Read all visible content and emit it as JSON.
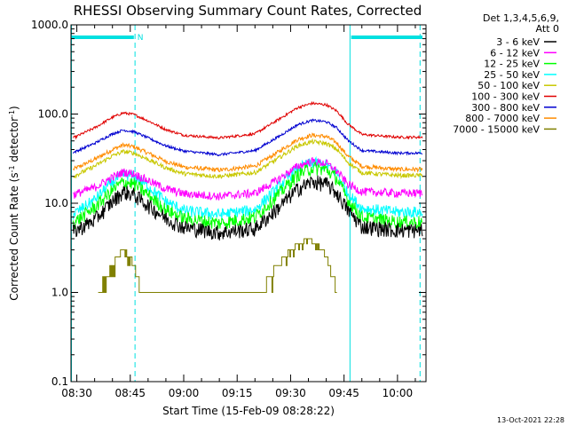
{
  "chart_data": {
    "type": "line",
    "title": "RHESSI Observing Summary Count Rates, Corrected",
    "xlabel": "Start Time (15-Feb-09 08:28:22)",
    "ylabel_parts": [
      "Corrected Count Rate (s",
      "-1",
      " detector",
      "-1",
      ")"
    ],
    "y_scale": "log",
    "ylim": [
      0.1,
      1000
    ],
    "xlim": [
      "08:28:22",
      "10:08:00"
    ],
    "x_ticks": [
      "08:30",
      "08:45",
      "09:00",
      "09:15",
      "09:30",
      "09:45",
      "10:00"
    ],
    "y_ticks": [
      "0.1",
      "1.0",
      "10.0",
      "100.0",
      "1000.0"
    ],
    "legend_header": [
      "Det 1,3,4,5,6,9,",
      "Att 0"
    ],
    "legend_position": "top-right, outside",
    "grid": false,
    "flag_marker": "N",
    "footer": "13-Oct-2021 22:28",
    "flag_bars": [
      {
        "start": "08:28:22",
        "end": "08:46:00"
      },
      {
        "start": "09:47:00",
        "end": "10:07:00"
      }
    ],
    "vertical_lines": [
      {
        "time": "08:28:30",
        "style": "solid"
      },
      {
        "time": "08:46:20",
        "style": "dashed"
      },
      {
        "time": "09:46:40",
        "style": "solid"
      },
      {
        "time": "10:06:20",
        "style": "dashed"
      }
    ],
    "series": [
      {
        "name": "3 - 6 keV",
        "color": "#000000",
        "x": [
          "08:29",
          "08:35",
          "08:40",
          "08:43",
          "08:46",
          "08:50",
          "08:55",
          "09:00",
          "09:10",
          "09:20",
          "09:26",
          "09:32",
          "09:36",
          "09:40",
          "09:43",
          "09:46",
          "09:50",
          "10:00",
          "10:07"
        ],
        "values": [
          4.8,
          6.5,
          10.5,
          13.5,
          12.5,
          9.5,
          6.8,
          5.4,
          4.7,
          5.2,
          8.5,
          14.5,
          17.5,
          16.5,
          13.0,
          8.5,
          5.5,
          5.0,
          5.0
        ]
      },
      {
        "name": "6 - 12 keV",
        "color": "#ff00ff",
        "x": [
          "08:29",
          "08:35",
          "08:40",
          "08:43",
          "08:46",
          "08:50",
          "08:55",
          "09:00",
          "09:10",
          "09:20",
          "09:26",
          "09:32",
          "09:36",
          "09:40",
          "09:43",
          "09:46",
          "09:50",
          "10:00",
          "10:07"
        ],
        "values": [
          12.5,
          15.0,
          19.5,
          22.5,
          21.5,
          18.0,
          14.5,
          12.8,
          12.0,
          13.0,
          18.0,
          26.0,
          29.5,
          28.0,
          23.0,
          16.5,
          13.5,
          13.0,
          13.0
        ]
      },
      {
        "name": "12 - 25 keV",
        "color": "#00ff00",
        "x": [
          "08:29",
          "08:35",
          "08:40",
          "08:43",
          "08:46",
          "08:50",
          "08:55",
          "09:00",
          "09:10",
          "09:20",
          "09:26",
          "09:32",
          "09:36",
          "09:40",
          "09:43",
          "09:46",
          "09:50",
          "10:00",
          "10:07"
        ],
        "values": [
          6.0,
          9.0,
          14.0,
          17.5,
          16.5,
          12.5,
          8.5,
          6.8,
          6.0,
          7.0,
          12.0,
          21.0,
          25.0,
          24.0,
          19.0,
          11.0,
          7.0,
          6.2,
          6.2
        ]
      },
      {
        "name": "25 - 50 keV",
        "color": "#00ffff",
        "x": [
          "08:29",
          "08:35",
          "08:40",
          "08:43",
          "08:46",
          "08:50",
          "08:55",
          "09:00",
          "09:10",
          "09:20",
          "09:26",
          "09:32",
          "09:36",
          "09:40",
          "09:43",
          "09:46",
          "09:50",
          "10:00",
          "10:07"
        ],
        "values": [
          7.5,
          11.0,
          17.5,
          21.0,
          20.0,
          15.5,
          10.5,
          8.3,
          7.5,
          8.5,
          14.5,
          24.5,
          28.5,
          27.0,
          21.5,
          13.0,
          8.8,
          8.0,
          8.0
        ]
      },
      {
        "name": "50 - 100 keV",
        "color": "#c8c800",
        "x": [
          "08:29",
          "08:35",
          "08:40",
          "08:43",
          "08:46",
          "08:50",
          "08:55",
          "09:00",
          "09:10",
          "09:20",
          "09:26",
          "09:32",
          "09:36",
          "09:40",
          "09:43",
          "09:46",
          "09:50",
          "10:00",
          "10:07"
        ],
        "values": [
          20.0,
          26.0,
          34.0,
          38.0,
          36.5,
          31.0,
          25.0,
          21.5,
          20.0,
          22.0,
          31.0,
          44.0,
          49.0,
          47.0,
          40.0,
          29.0,
          22.0,
          20.5,
          20.5
        ]
      },
      {
        "name": "100 - 300 keV",
        "color": "#e00000",
        "x": [
          "08:29",
          "08:35",
          "08:40",
          "08:43",
          "08:46",
          "08:50",
          "08:55",
          "09:00",
          "09:10",
          "09:20",
          "09:26",
          "09:32",
          "09:36",
          "09:40",
          "09:43",
          "09:46",
          "09:50",
          "10:00",
          "10:07"
        ],
        "values": [
          54.0,
          70.0,
          92.0,
          103.0,
          99.0,
          84.0,
          67.0,
          58.0,
          54.0,
          60.0,
          84.0,
          118.0,
          132.0,
          127.0,
          108.0,
          78.0,
          59.0,
          55.0,
          55.0
        ]
      },
      {
        "name": "300 - 800 keV",
        "color": "#0000d0",
        "x": [
          "08:29",
          "08:35",
          "08:40",
          "08:43",
          "08:46",
          "08:50",
          "08:55",
          "09:00",
          "09:10",
          "09:20",
          "09:26",
          "09:32",
          "09:36",
          "09:40",
          "09:43",
          "09:46",
          "09:50",
          "10:00",
          "10:07"
        ],
        "values": [
          37.0,
          47.0,
          60.0,
          66.0,
          63.5,
          54.0,
          44.0,
          38.5,
          35.0,
          39.0,
          54.0,
          76.0,
          85.0,
          82.0,
          70.0,
          51.0,
          39.0,
          36.5,
          36.5
        ]
      },
      {
        "name": "800 - 7000 keV",
        "color": "#ff8c00",
        "x": [
          "08:29",
          "08:35",
          "08:40",
          "08:43",
          "08:46",
          "08:50",
          "08:55",
          "09:00",
          "09:10",
          "09:20",
          "09:26",
          "09:32",
          "09:36",
          "09:40",
          "09:43",
          "09:46",
          "09:50",
          "10:00",
          "10:07"
        ],
        "values": [
          24.0,
          31.0,
          40.0,
          45.0,
          43.0,
          36.5,
          29.5,
          25.5,
          23.5,
          26.0,
          36.5,
          52.0,
          58.0,
          56.0,
          47.5,
          34.0,
          26.0,
          24.0,
          24.0
        ]
      },
      {
        "name": "7000 - 15000 keV",
        "color": "#808000",
        "x": [
          "08:36",
          "08:38",
          "08:40",
          "08:41",
          "08:43",
          "08:45",
          "08:46",
          "08:48",
          "09:22",
          "09:24",
          "09:26",
          "09:28",
          "09:30",
          "09:32",
          "09:35",
          "09:37",
          "09:39",
          "09:41",
          "09:43"
        ],
        "values": [
          1.0,
          1.5,
          2.0,
          2.5,
          3.0,
          2.5,
          2.0,
          1.0,
          1.0,
          1.5,
          2.0,
          2.5,
          3.0,
          3.5,
          4.0,
          3.5,
          3.0,
          2.0,
          1.0
        ]
      }
    ]
  }
}
